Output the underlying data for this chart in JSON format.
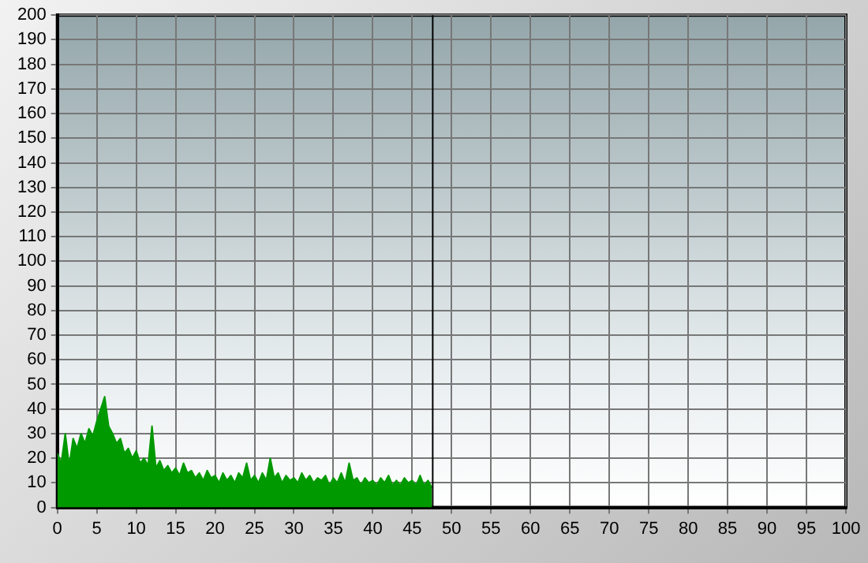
{
  "chart_data": {
    "type": "area",
    "x": [
      0,
      0.5,
      1,
      1.5,
      2,
      2.5,
      3,
      3.5,
      4,
      4.5,
      5,
      5.5,
      6,
      6.5,
      7,
      7.5,
      8,
      8.5,
      9,
      9.5,
      10,
      10.5,
      11,
      11.5,
      12,
      12.5,
      13,
      13.5,
      14,
      14.5,
      15,
      15.5,
      16,
      16.5,
      17,
      17.5,
      18,
      18.5,
      19,
      19.5,
      20,
      20.5,
      21,
      21.5,
      22,
      22.5,
      23,
      23.5,
      24,
      24.5,
      25,
      25.5,
      26,
      26.5,
      27,
      27.5,
      28,
      28.5,
      29,
      29.5,
      30,
      30.5,
      31,
      31.5,
      32,
      32.5,
      33,
      33.5,
      34,
      34.5,
      35,
      35.5,
      36,
      36.5,
      37,
      37.5,
      38,
      38.5,
      39,
      39.5,
      40,
      40.5,
      41,
      41.5,
      42,
      42.5,
      43,
      43.5,
      44,
      44.5,
      45,
      45.5,
      46,
      46.5,
      47,
      47.5
    ],
    "series": [
      {
        "color": "#009900",
        "values": [
          22,
          18,
          30,
          17,
          28,
          24,
          30,
          26,
          32,
          29,
          35,
          40,
          45,
          33,
          30,
          26,
          28,
          22,
          24,
          20,
          23,
          18,
          20,
          17,
          33,
          16,
          19,
          15,
          17,
          14,
          16,
          13,
          18,
          14,
          15,
          12,
          14,
          11,
          15,
          12,
          13,
          10,
          14,
          11,
          13,
          10,
          14,
          12,
          18,
          11,
          13,
          10,
          14,
          11,
          20,
          12,
          14,
          10,
          13,
          11,
          12,
          10,
          14,
          11,
          13,
          10,
          12,
          11,
          13,
          9,
          12,
          10,
          14,
          10,
          18,
          11,
          12,
          9,
          12,
          10,
          11,
          9,
          12,
          10,
          13,
          9,
          11,
          9,
          12,
          10,
          11,
          9,
          13,
          9,
          11,
          8
        ]
      }
    ],
    "xlim": [
      0,
      100
    ],
    "xticks": [
      0,
      5,
      10,
      15,
      20,
      25,
      30,
      35,
      40,
      45,
      50,
      55,
      60,
      65,
      70,
      75,
      80,
      85,
      90,
      95,
      100
    ],
    "ylim": [
      0,
      200
    ],
    "yticks": [
      0,
      10,
      20,
      30,
      40,
      50,
      60,
      70,
      80,
      90,
      100,
      110,
      120,
      130,
      140,
      150,
      160,
      170,
      180,
      190,
      200
    ],
    "grid": true,
    "legend": false,
    "ref_lines": [
      {
        "axis": "x",
        "value": 47.6,
        "color": "#000000"
      }
    ]
  }
}
